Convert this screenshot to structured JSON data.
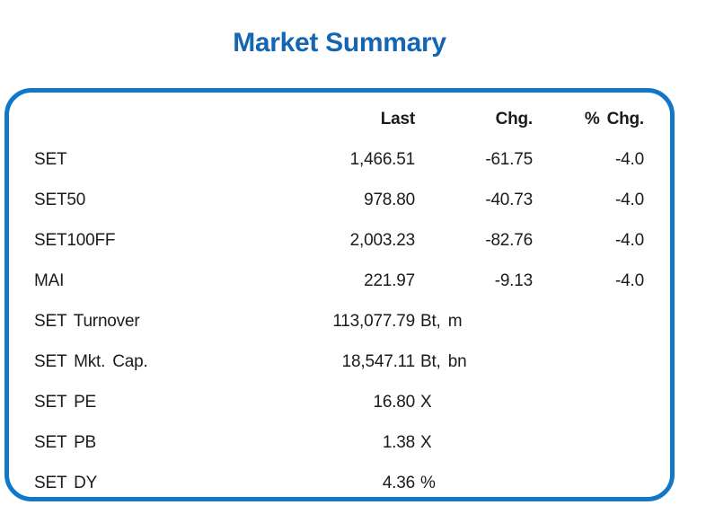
{
  "title": "Market Summary",
  "colors": {
    "title_blue": "#1466b2",
    "border_blue": "#1377c8",
    "text": "#1b1b1b"
  },
  "table": {
    "headers": {
      "last": "Last",
      "chg": "Chg.",
      "pct_chg": "% Chg."
    },
    "rows": [
      {
        "label": "SET",
        "last": "1,466.51",
        "unit": "",
        "chg": "-61.75",
        "pct_chg": "-4.0"
      },
      {
        "label": "SET50",
        "last": "978.80",
        "unit": "",
        "chg": "-40.73",
        "pct_chg": "-4.0"
      },
      {
        "label": "SET100FF",
        "last": "2,003.23",
        "unit": "",
        "chg": "-82.76",
        "pct_chg": "-4.0"
      },
      {
        "label": "MAI",
        "last": "221.97",
        "unit": "",
        "chg": "-9.13",
        "pct_chg": "-4.0"
      },
      {
        "label": "SET Turnover",
        "last": "113,077.79",
        "unit": "Bt, m",
        "chg": "",
        "pct_chg": ""
      },
      {
        "label": "SET Mkt. Cap.",
        "last": "18,547.11",
        "unit": "Bt, bn",
        "chg": "",
        "pct_chg": ""
      },
      {
        "label": "SET PE",
        "last": "16.80",
        "unit": "X",
        "chg": "",
        "pct_chg": ""
      },
      {
        "label": "SET PB",
        "last": "1.38",
        "unit": "X",
        "chg": "",
        "pct_chg": ""
      },
      {
        "label": "SET DY",
        "last": "4.36",
        "unit": "%",
        "chg": "",
        "pct_chg": ""
      }
    ]
  },
  "chart_data": {
    "type": "table",
    "title": "Market Summary",
    "columns": [
      "",
      "Last",
      "Chg.",
      "% Chg."
    ],
    "rows": [
      [
        "SET",
        "1,466.51",
        "-61.75",
        "-4.0"
      ],
      [
        "SET50",
        "978.80",
        "-40.73",
        "-4.0"
      ],
      [
        "SET100FF",
        "2,003.23",
        "-82.76",
        "-4.0"
      ],
      [
        "MAI",
        "221.97",
        "-9.13",
        "-4.0"
      ],
      [
        "SET Turnover",
        "113,077.79 Bt, m",
        "",
        ""
      ],
      [
        "SET Mkt. Cap.",
        "18,547.11 Bt, bn",
        "",
        ""
      ],
      [
        "SET PE",
        "16.80 X",
        "",
        ""
      ],
      [
        "SET PB",
        "1.38 X",
        "",
        ""
      ],
      [
        "SET DY",
        "4.36 %",
        "",
        ""
      ]
    ]
  }
}
